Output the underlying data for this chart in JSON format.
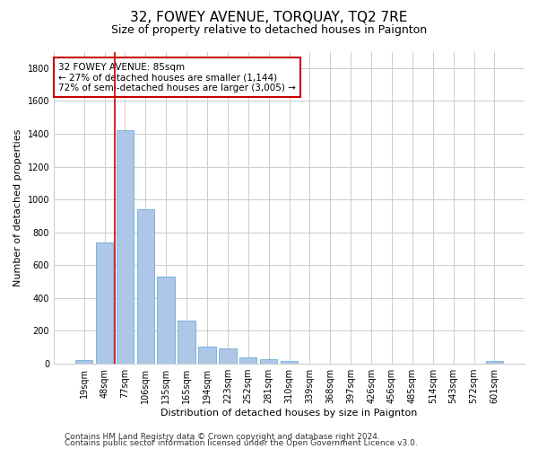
{
  "title": "32, FOWEY AVENUE, TORQUAY, TQ2 7RE",
  "subtitle": "Size of property relative to detached houses in Paignton",
  "xlabel": "Distribution of detached houses by size in Paignton",
  "ylabel": "Number of detached properties",
  "footer_line1": "Contains HM Land Registry data © Crown copyright and database right 2024.",
  "footer_line2": "Contains public sector information licensed under the Open Government Licence v3.0.",
  "categories": [
    "19sqm",
    "48sqm",
    "77sqm",
    "106sqm",
    "135sqm",
    "165sqm",
    "194sqm",
    "223sqm",
    "252sqm",
    "281sqm",
    "310sqm",
    "339sqm",
    "368sqm",
    "397sqm",
    "426sqm",
    "456sqm",
    "485sqm",
    "514sqm",
    "543sqm",
    "572sqm",
    "601sqm"
  ],
  "values": [
    22,
    740,
    1420,
    940,
    530,
    265,
    105,
    95,
    40,
    27,
    15,
    0,
    0,
    0,
    0,
    0,
    0,
    0,
    0,
    0,
    15
  ],
  "bar_color": "#aec6e8",
  "bar_edge_color": "#6baed6",
  "vline_color": "#cc0000",
  "vline_x_index": 2,
  "annotation_line1": "32 FOWEY AVENUE: 85sqm",
  "annotation_line2": "← 27% of detached houses are smaller (1,144)",
  "annotation_line3": "72% of semi-detached houses are larger (3,005) →",
  "annotation_box_color": "#cc0000",
  "annotation_box_fill": "#ffffff",
  "ylim": [
    0,
    1900
  ],
  "yticks": [
    0,
    200,
    400,
    600,
    800,
    1000,
    1200,
    1400,
    1600,
    1800
  ],
  "background_color": "#ffffff",
  "grid_color": "#cccccc",
  "title_fontsize": 11,
  "subtitle_fontsize": 9,
  "axis_label_fontsize": 8,
  "tick_fontsize": 7,
  "annotation_fontsize": 7.5,
  "footer_fontsize": 6.5
}
